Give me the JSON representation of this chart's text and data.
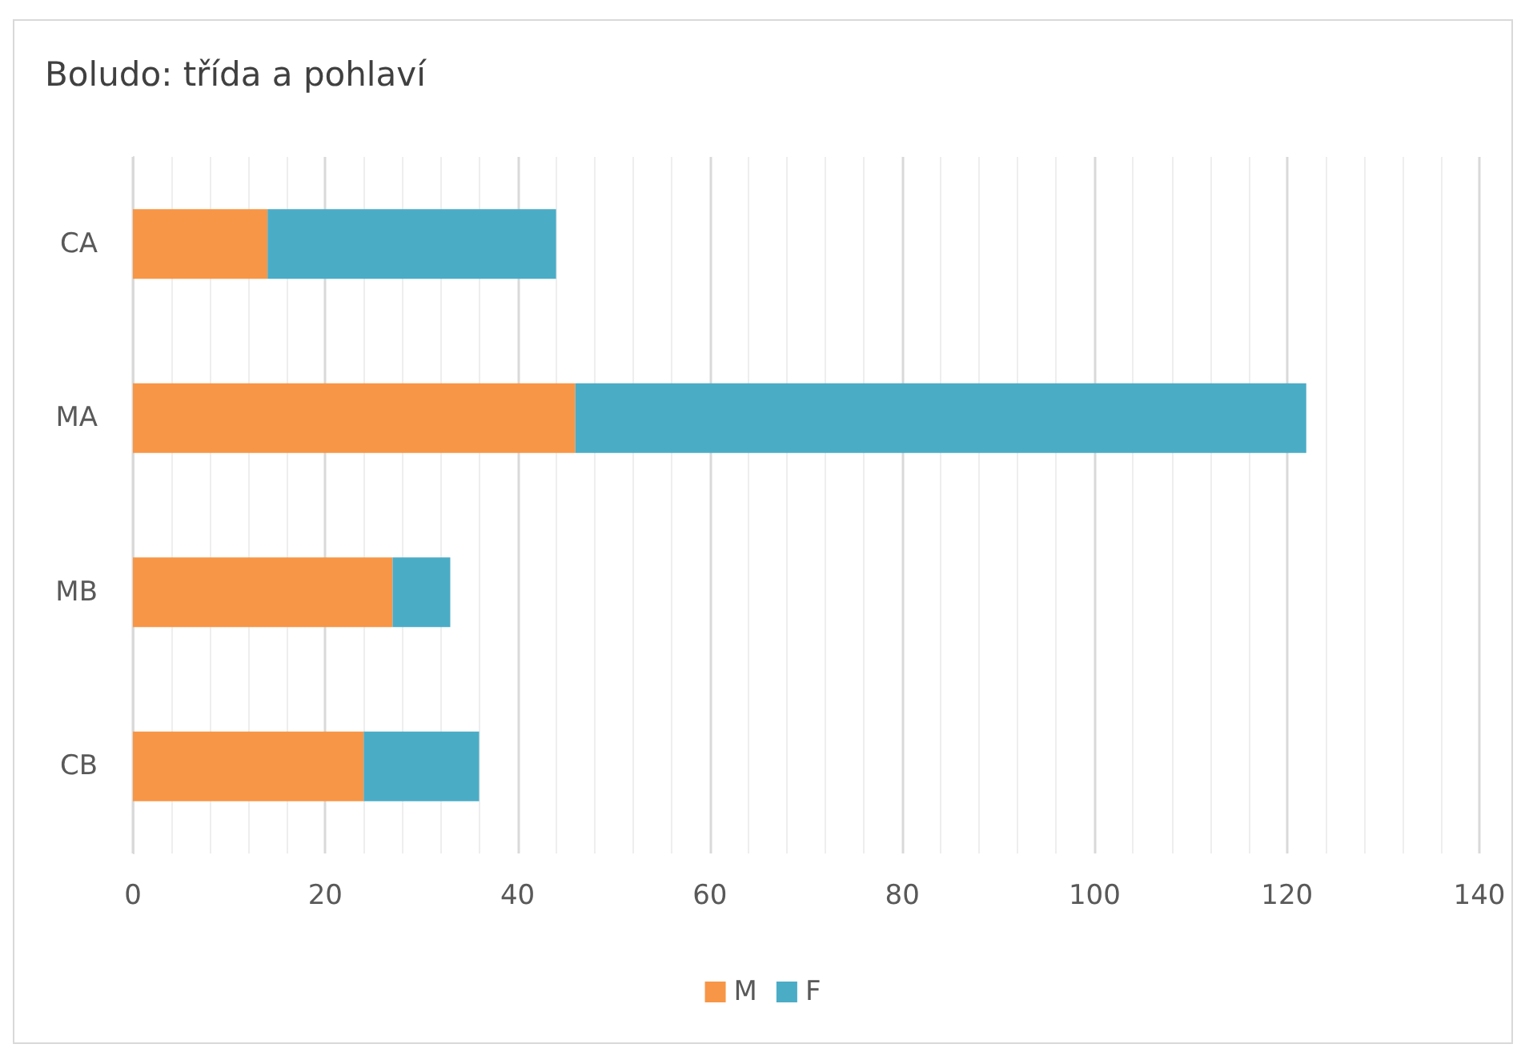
{
  "chart_data": {
    "type": "bar",
    "title": "Boludo: třída a pohlaví",
    "orientation": "horizontal",
    "stacked": true,
    "categories": [
      "CA",
      "MA",
      "MB",
      "CB"
    ],
    "series": [
      {
        "name": "M",
        "color": "#f79646",
        "values": [
          14,
          46,
          27,
          24
        ]
      },
      {
        "name": "F",
        "color": "#4bacc6",
        "values": [
          30,
          76,
          6,
          12
        ]
      }
    ],
    "xlim": [
      0,
      140
    ],
    "xticks": [
      0,
      20,
      40,
      60,
      80,
      100,
      120,
      140
    ],
    "grid": "x",
    "legend": "bottom"
  }
}
